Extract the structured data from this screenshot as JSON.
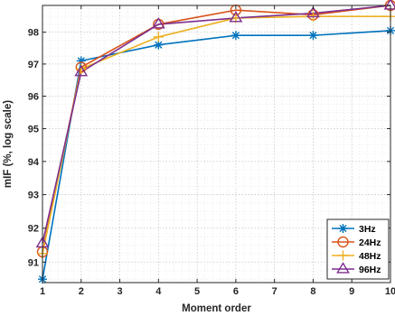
{
  "chart_data": {
    "type": "line",
    "xlabel": "Moment order",
    "ylabel": "mIF (%, log scale)",
    "y_scale": "log",
    "xlim": [
      1,
      10
    ],
    "ylim": [
      90.4,
      98.85
    ],
    "x_ticks": [
      "1",
      "2",
      "3",
      "4",
      "5",
      "6",
      "7",
      "8",
      "9",
      "10"
    ],
    "y_ticks": [
      "91",
      "92",
      "93",
      "94",
      "95",
      "96",
      "97",
      "98"
    ],
    "grid": "major and minor, dotted",
    "legend_position": "bottom-right",
    "x": [
      1,
      2,
      4,
      6,
      8,
      10
    ],
    "series": [
      {
        "name": "3Hz",
        "color": "#0072BD",
        "marker": "asterisk",
        "values": [
          90.5,
          97.1,
          97.6,
          97.9,
          97.9,
          98.05
        ]
      },
      {
        "name": "24Hz",
        "color": "#D95319",
        "marker": "circle",
        "values": [
          91.3,
          96.9,
          98.25,
          98.7,
          98.55,
          98.85
        ]
      },
      {
        "name": "48Hz",
        "color": "#EDB120",
        "marker": "plus",
        "values": [
          91.25,
          96.85,
          97.85,
          98.45,
          98.5,
          98.5
        ]
      },
      {
        "name": "96Hz",
        "color": "#7E2F8E",
        "marker": "triangle",
        "values": [
          91.55,
          96.75,
          98.25,
          98.45,
          98.6,
          98.85
        ]
      }
    ]
  }
}
